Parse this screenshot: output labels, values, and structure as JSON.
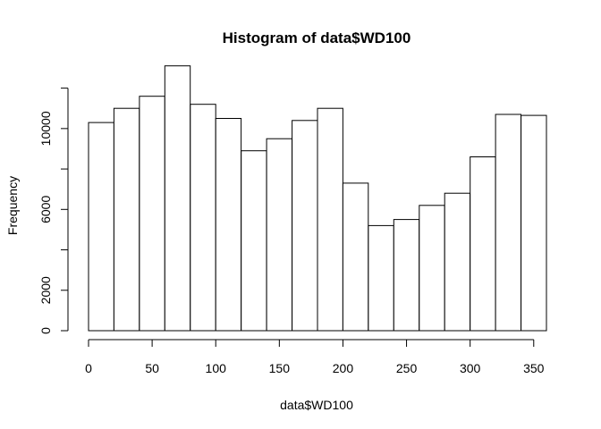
{
  "chart_data": {
    "type": "bar",
    "title": "Histogram of data$WD100",
    "xlabel": "data$WD100",
    "ylabel": "Frequency",
    "xlim": [
      0,
      360
    ],
    "ylim": [
      0,
      13000
    ],
    "x_ticks": [
      0,
      50,
      100,
      150,
      200,
      250,
      300,
      350
    ],
    "y_ticks": [
      0,
      2000,
      6000,
      10000
    ],
    "y_tick_labels": [
      "0",
      "2000",
      "6000",
      "10000"
    ],
    "y_minor_ticks": [
      4000,
      8000,
      12000
    ],
    "bin_width": 20,
    "bins": [
      {
        "x0": 0,
        "x1": 20,
        "value": 10300
      },
      {
        "x0": 20,
        "x1": 40,
        "value": 11000
      },
      {
        "x0": 40,
        "x1": 60,
        "value": 11600
      },
      {
        "x0": 60,
        "x1": 80,
        "value": 13100
      },
      {
        "x0": 80,
        "x1": 100,
        "value": 11200
      },
      {
        "x0": 100,
        "x1": 120,
        "value": 10500
      },
      {
        "x0": 120,
        "x1": 140,
        "value": 8900
      },
      {
        "x0": 140,
        "x1": 160,
        "value": 9500
      },
      {
        "x0": 160,
        "x1": 180,
        "value": 10400
      },
      {
        "x0": 180,
        "x1": 200,
        "value": 11000
      },
      {
        "x0": 200,
        "x1": 220,
        "value": 7300
      },
      {
        "x0": 220,
        "x1": 240,
        "value": 5200
      },
      {
        "x0": 240,
        "x1": 260,
        "value": 5500
      },
      {
        "x0": 260,
        "x1": 280,
        "value": 6200
      },
      {
        "x0": 280,
        "x1": 300,
        "value": 6800
      },
      {
        "x0": 300,
        "x1": 320,
        "value": 8600
      },
      {
        "x0": 320,
        "x1": 340,
        "value": 10700
      },
      {
        "x0": 340,
        "x1": 360,
        "value": 10650
      }
    ],
    "grid": false,
    "legend": "none"
  }
}
